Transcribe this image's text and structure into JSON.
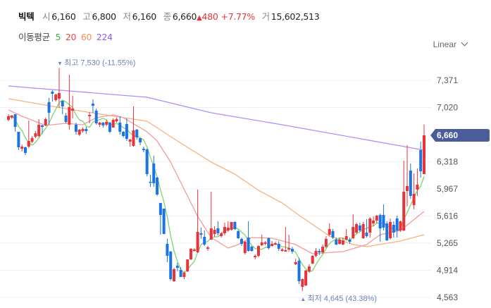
{
  "header": {
    "name": "빅텍",
    "open_label": "시",
    "open": "6,160",
    "high_label": "고",
    "high": "6,800",
    "low_label": "저",
    "low": "6,160",
    "close_label": "종",
    "close": "6,660",
    "change_arrow": "▲",
    "change": "480",
    "change_pct": "+7.77%",
    "volume_label": "거",
    "volume": "15,602,513"
  },
  "ma_legend": {
    "label": "이동평균",
    "items": [
      {
        "period": "5",
        "color": "#3cb043"
      },
      {
        "period": "20",
        "color": "#ef4444"
      },
      {
        "period": "60",
        "color": "#f98a5a"
      },
      {
        "period": "224",
        "color": "#8b5cf6"
      }
    ]
  },
  "scale_select": {
    "value": "Linear"
  },
  "chart_data": {
    "type": "candlestick",
    "title": "빅텍",
    "ylim": [
      4563,
      7371
    ],
    "y_ticks": [
      "7,371",
      "7,020",
      "6,318",
      "5,967",
      "5,616",
      "5,265",
      "4,914",
      "4,563"
    ],
    "y_tick_values": [
      7371,
      7020,
      6318,
      5967,
      5616,
      5265,
      4914,
      4563
    ],
    "grid": true,
    "current_price": {
      "value": 6660,
      "label": "6,660"
    },
    "max_annotation": {
      "arrow": "▼",
      "text": "최고 7,530 (-11.55%)",
      "value": 7530
    },
    "min_annotation": {
      "arrow": "▲",
      "text": "최저 4,645 (43.38%)",
      "value": 4645
    },
    "colors": {
      "up": "#e8333a",
      "down": "#1b74e4",
      "ma5": "#7ed56f",
      "ma20": "#f59a9a",
      "ma60": "#f7b27a",
      "ma224": "#b58cf5",
      "tag": "#4a5d9a"
    },
    "ohlc_fields": [
      "open",
      "high",
      "low",
      "close"
    ],
    "candles": [
      [
        6860,
        6933,
        6842,
        6906
      ],
      [
        6888,
        6924,
        6870,
        6915
      ],
      [
        6933,
        6933,
        6706,
        6769
      ],
      [
        6706,
        6706,
        6468,
        6505
      ],
      [
        6487,
        6541,
        6450,
        6514
      ],
      [
        6505,
        6514,
        6404,
        6432
      ],
      [
        6514,
        6851,
        6496,
        6587
      ],
      [
        6578,
        6651,
        6560,
        6623
      ],
      [
        6642,
        6715,
        6623,
        6687
      ],
      [
        6651,
        6870,
        6633,
        6797
      ],
      [
        6788,
        6797,
        6678,
        6769
      ],
      [
        6788,
        6888,
        6778,
        6870
      ],
      [
        7088,
        7143,
        6797,
        6952
      ],
      [
        7225,
        7243,
        7097,
        7198
      ],
      [
        7116,
        7198,
        7097,
        7188
      ],
      [
        7134,
        7530,
        7015,
        7207
      ],
      [
        7106,
        7106,
        6933,
        7034
      ],
      [
        6915,
        6952,
        6815,
        6833
      ],
      [
        6797,
        7444,
        6733,
        7025
      ],
      [
        6979,
        7170,
        6879,
        7006
      ],
      [
        6797,
        6824,
        6669,
        6706
      ],
      [
        6669,
        6742,
        6651,
        6733
      ],
      [
        6715,
        6760,
        6697,
        6742
      ],
      [
        6742,
        6770,
        6678,
        6715
      ],
      [
        6906,
        6961,
        6815,
        6924
      ],
      [
        7070,
        7125,
        6952,
        7043
      ],
      [
        6979,
        7006,
        6797,
        6815
      ],
      [
        6797,
        6833,
        6770,
        6824
      ],
      [
        6824,
        6833,
        6760,
        6788
      ],
      [
        6797,
        6860,
        6779,
        6833
      ],
      [
        6824,
        6833,
        6687,
        6706
      ],
      [
        6760,
        6879,
        6760,
        6860
      ],
      [
        6842,
        6888,
        6824,
        6870
      ],
      [
        6824,
        6906,
        6669,
        6706
      ],
      [
        6706,
        6715,
        6633,
        6651
      ],
      [
        6806,
        6879,
        6587,
        6614
      ],
      [
        6578,
        6614,
        6514,
        6605
      ],
      [
        6523,
        7034,
        6514,
        6724
      ],
      [
        6733,
        6742,
        6605,
        6633
      ],
      [
        6623,
        6623,
        6532,
        6569
      ],
      [
        6487,
        6514,
        6441,
        6468
      ],
      [
        6478,
        6487,
        6130,
        6158
      ],
      [
        6058,
        6149,
        5994,
        6049
      ],
      [
        6295,
        6395,
        5994,
        6040
      ],
      [
        6113,
        6122,
        5876,
        5894
      ],
      [
        5785,
        5785,
        5374,
        5630
      ],
      [
        5712,
        5712,
        5383,
        5383
      ],
      [
        5256,
        5320,
        5019,
        5101
      ],
      [
        5156,
        5165,
        4782,
        4800
      ],
      [
        4773,
        4946,
        4764,
        4928
      ],
      [
        4973,
        5010,
        4900,
        4946
      ],
      [
        4919,
        4955,
        4828,
        4828
      ],
      [
        4828,
        4900,
        4800,
        4882
      ],
      [
        4900,
        5055,
        4891,
        5055
      ],
      [
        5055,
        5201,
        5046,
        5192
      ],
      [
        5165,
        5201,
        5156,
        5183
      ],
      [
        5146,
        5958,
        5137,
        5411
      ],
      [
        5393,
        5466,
        5320,
        5374
      ],
      [
        5347,
        5429,
        5229,
        5247
      ],
      [
        5192,
        5229,
        5165,
        5210
      ],
      [
        5311,
        5930,
        5311,
        5456
      ],
      [
        5384,
        5484,
        5347,
        5438
      ],
      [
        5456,
        5548,
        5365,
        5393
      ],
      [
        5356,
        5411,
        5338,
        5393
      ],
      [
        5393,
        5530,
        5365,
        5475
      ],
      [
        5429,
        5548,
        5411,
        5466
      ],
      [
        5438,
        5539,
        5429,
        5539
      ],
      [
        5539,
        5548,
        5438,
        5447
      ],
      [
        5420,
        5438,
        5320,
        5329
      ],
      [
        5320,
        5338,
        5229,
        5256
      ],
      [
        5138,
        5292,
        5119,
        5283
      ],
      [
        5338,
        5548,
        5156,
        5165
      ],
      [
        5219,
        5229,
        5156,
        5165
      ],
      [
        5083,
        5119,
        5055,
        5101
      ],
      [
        5101,
        5238,
        5083,
        5228
      ],
      [
        5238,
        5374,
        5228,
        5274
      ],
      [
        5256,
        5292,
        5238,
        5274
      ],
      [
        5329,
        5338,
        5183,
        5201
      ],
      [
        5228,
        5292,
        5219,
        5256
      ],
      [
        5247,
        5283,
        5238,
        5265
      ],
      [
        5256,
        5292,
        5165,
        5192
      ],
      [
        5165,
        5201,
        5156,
        5183
      ],
      [
        5156,
        5475,
        5156,
        5174
      ],
      [
        5183,
        5374,
        5156,
        5201
      ],
      [
        5192,
        5219,
        5128,
        5156
      ],
      [
        4992,
        5064,
        4982,
        5019
      ],
      [
        5037,
        5074,
        4736,
        4773
      ],
      [
        4700,
        4809,
        4645,
        4800
      ],
      [
        4718,
        4919,
        4709,
        4910
      ],
      [
        4900,
        4992,
        4882,
        4964
      ],
      [
        5001,
        5110,
        4992,
        5101
      ],
      [
        5101,
        5201,
        5083,
        5165
      ],
      [
        5165,
        5192,
        5110,
        5146
      ],
      [
        5146,
        5247,
        5128,
        5219
      ],
      [
        5219,
        5356,
        5201,
        5320
      ],
      [
        5374,
        5521,
        5356,
        5447
      ],
      [
        5420,
        5447,
        5320,
        5338
      ],
      [
        5311,
        5338,
        5238,
        5247
      ],
      [
        5256,
        5338,
        5247,
        5311
      ],
      [
        5247,
        5338,
        5238,
        5301
      ],
      [
        5311,
        5447,
        5301,
        5356
      ],
      [
        5311,
        5338,
        5256,
        5283
      ],
      [
        5329,
        5639,
        5320,
        5475
      ],
      [
        5402,
        5530,
        5384,
        5511
      ],
      [
        5493,
        5530,
        5411,
        5429
      ],
      [
        5329,
        5539,
        5320,
        5511
      ],
      [
        5402,
        5575,
        5338,
        5356
      ],
      [
        5402,
        5602,
        5338,
        5584
      ],
      [
        5520,
        5612,
        5484,
        5557
      ],
      [
        5557,
        5630,
        5521,
        5621
      ],
      [
        5630,
        5648,
        5283,
        5456
      ],
      [
        5630,
        5767,
        5429,
        5466
      ],
      [
        5520,
        5548,
        5292,
        5301
      ],
      [
        5329,
        5584,
        5311,
        5539
      ],
      [
        5502,
        5548,
        5338,
        5402
      ],
      [
        5584,
        5621,
        5338,
        5429
      ],
      [
        5429,
        5557,
        5411,
        5548
      ],
      [
        5429,
        6332,
        5420,
        5931
      ],
      [
        5940,
        6532,
        5739,
        6004
      ],
      [
        6204,
        6295,
        5839,
        5876
      ],
      [
        5757,
        6167,
        5703,
        5903
      ],
      [
        5958,
        6231,
        5876,
        6022
      ],
      [
        6468,
        6578,
        6113,
        6195
      ],
      [
        6158,
        6800,
        6158,
        6660
      ]
    ],
    "ma_points": {
      "ma20": [
        [
          0,
          6988
        ],
        [
          4,
          6906
        ],
        [
          11,
          6788
        ],
        [
          17,
          6815
        ],
        [
          22,
          6797
        ],
        [
          26,
          6888
        ],
        [
          31,
          6924
        ],
        [
          34,
          6888
        ],
        [
          41,
          6706
        ],
        [
          44,
          6587
        ],
        [
          48,
          6313
        ],
        [
          56,
          5611
        ],
        [
          60,
          5338
        ],
        [
          65,
          5201
        ],
        [
          68,
          5247
        ],
        [
          72,
          5338
        ],
        [
          78,
          5329
        ],
        [
          85,
          5247
        ],
        [
          90,
          5128
        ],
        [
          99,
          5156
        ],
        [
          106,
          5247
        ],
        [
          110,
          5374
        ],
        [
          116,
          5429
        ],
        [
          123,
          5675
        ]
      ],
      "ma60": [
        [
          0,
          7134
        ],
        [
          18,
          6997
        ],
        [
          41,
          6842
        ],
        [
          50,
          6587
        ],
        [
          60,
          6313
        ],
        [
          67,
          6158
        ],
        [
          74,
          5949
        ],
        [
          81,
          5785
        ],
        [
          85,
          5657
        ],
        [
          95,
          5356
        ],
        [
          102,
          5247
        ],
        [
          106,
          5219
        ],
        [
          116,
          5292
        ],
        [
          123,
          5374
        ]
      ],
      "ma224": [
        [
          0,
          7298
        ],
        [
          41,
          7152
        ],
        [
          60,
          6952
        ],
        [
          81,
          6797
        ],
        [
          123,
          6468
        ]
      ]
    }
  }
}
